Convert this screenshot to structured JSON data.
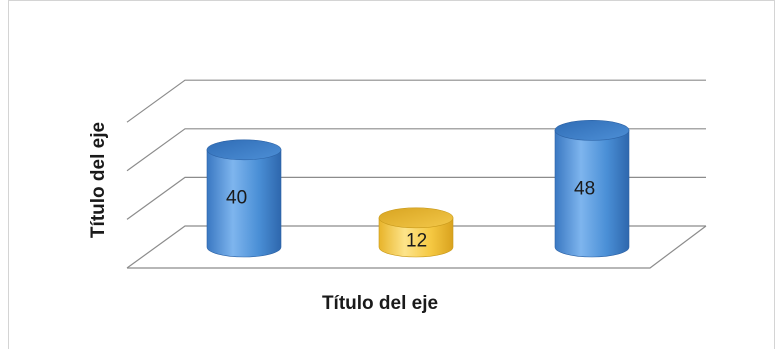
{
  "chart_data": {
    "type": "bar",
    "style": "3d-cylinder",
    "categories": [
      "",
      "",
      ""
    ],
    "values": [
      40,
      12,
      48
    ],
    "bar_colors": [
      "#4a8fd6",
      "#f5c842",
      "#4a8fd6"
    ],
    "data_labels": [
      "40",
      "12",
      "48"
    ],
    "title": "",
    "xlabel": "Título del eje",
    "ylabel": "Título del eje",
    "ylim": [
      0,
      60
    ],
    "gridlines": true,
    "legend": false
  }
}
